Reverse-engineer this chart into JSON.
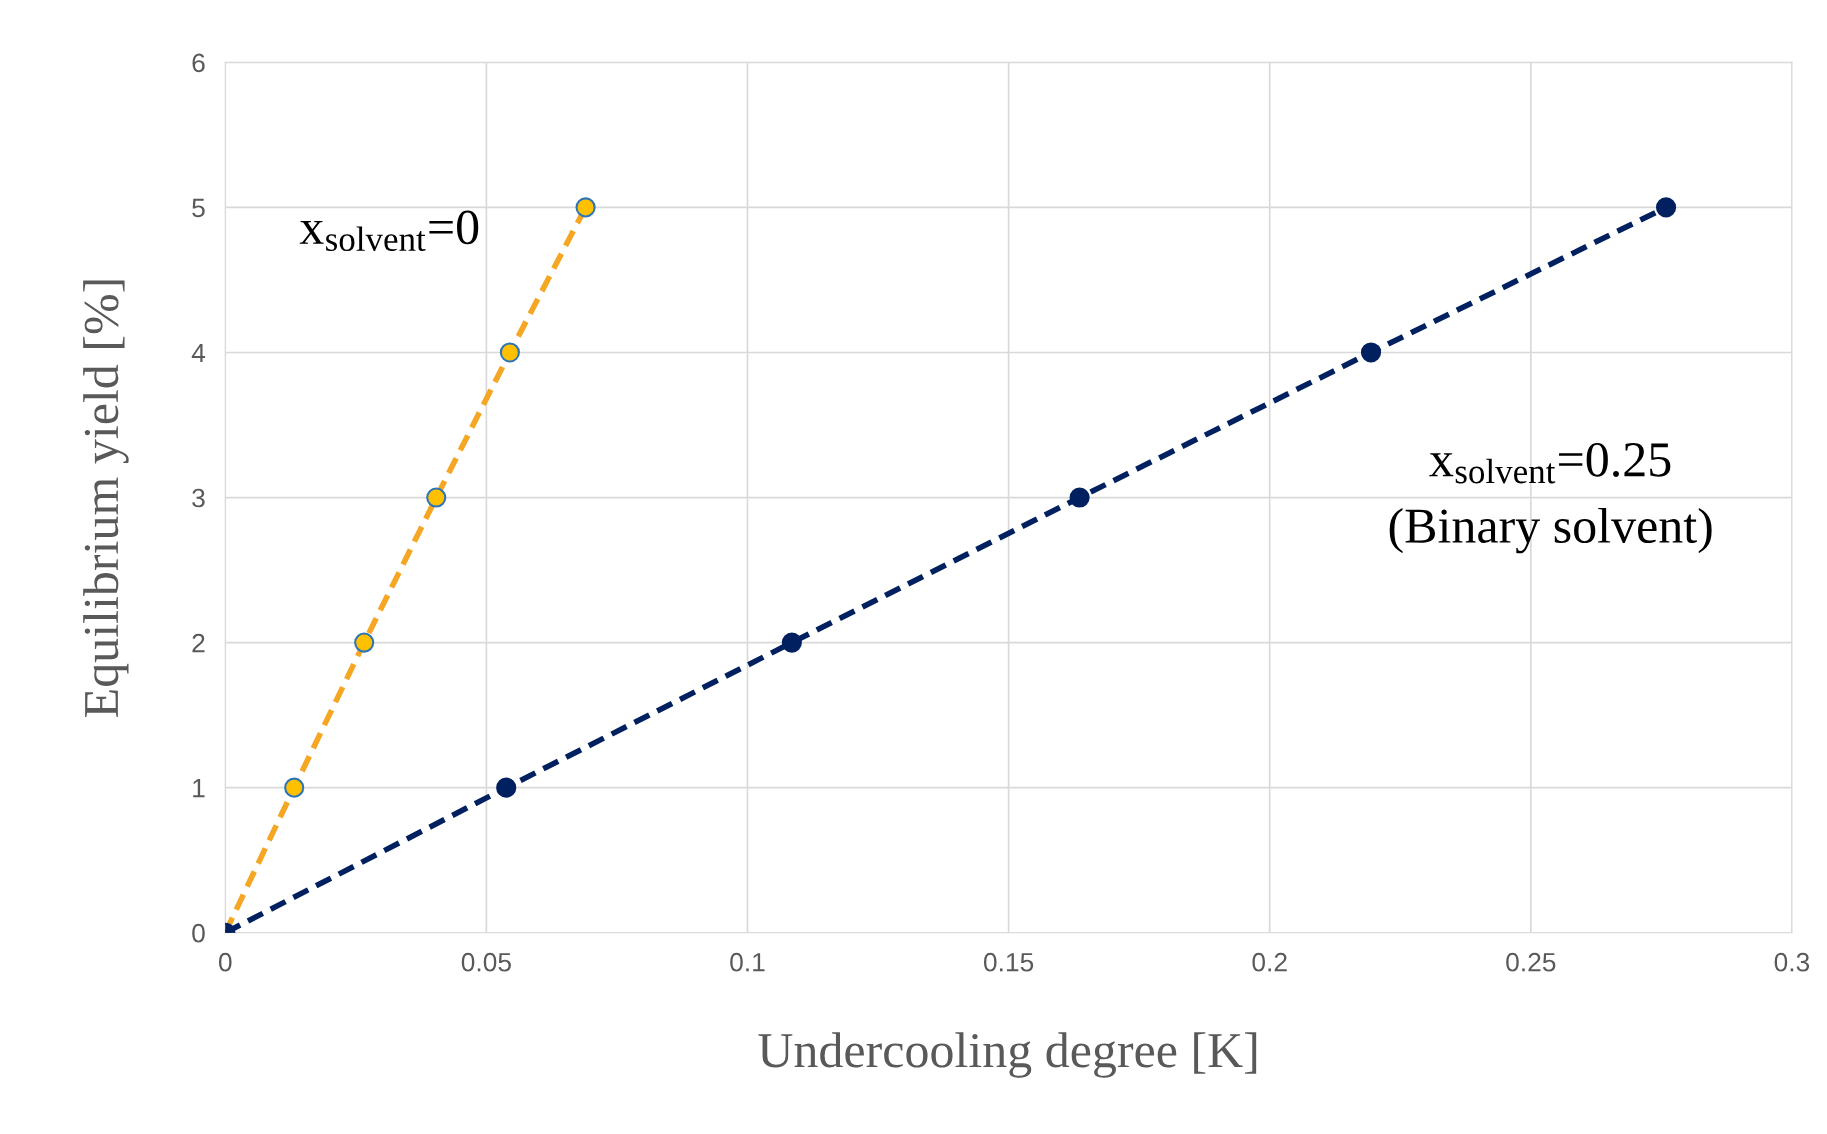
{
  "chart_data": {
    "type": "line",
    "xlabel": "Undercooling degree [K]",
    "ylabel": "Equilibrium yield [%]",
    "xlim": [
      0,
      0.3
    ],
    "xticks": [
      0,
      0.05,
      0.1,
      0.15,
      0.2,
      0.25,
      0.3
    ],
    "ylim": [
      0,
      6
    ],
    "yticks": [
      0,
      1,
      2,
      3,
      4,
      5,
      6
    ],
    "grid": true,
    "marker": "circle",
    "line_style": "dashed",
    "series": [
      {
        "color": "#f5a623",
        "x": [
          0,
          0.0132,
          0.0266,
          0.0404,
          0.0545,
          0.069
        ],
        "values": [
          0,
          1,
          2,
          3,
          4,
          5
        ]
      },
      {
        "color": "#002060",
        "x": [
          0,
          0.0538,
          0.1085,
          0.1636,
          0.2194,
          0.2759
        ],
        "values": [
          0,
          1,
          2,
          3,
          4,
          5
        ]
      }
    ],
    "annotations": [
      "x$_{solvent}$=0",
      "x$_{solvent}$=0.25\n(Binary solvent)"
    ]
  }
}
